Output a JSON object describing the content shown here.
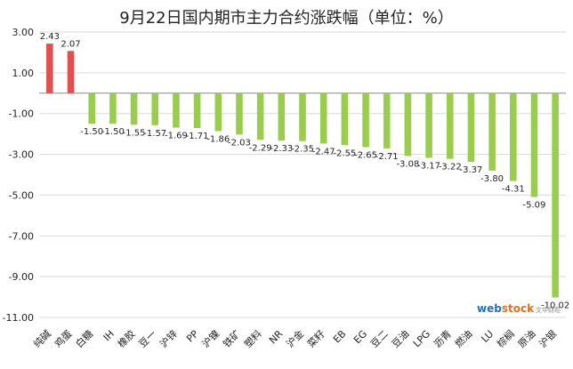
{
  "chart_data": {
    "type": "bar",
    "title": "9月22日国内期市主力合约涨跌幅（单位：%）",
    "xlabel": "",
    "ylabel": "",
    "ylim": [
      -11,
      3
    ],
    "yticks": [
      3.0,
      1.0,
      -1.0,
      -3.0,
      -5.0,
      -7.0,
      -9.0,
      -11.0
    ],
    "ytick_labels": [
      "3.00",
      "1.00",
      "-1.00",
      "-3.00",
      "-5.00",
      "-7.00",
      "-9.00",
      "-11.00"
    ],
    "grid": true,
    "legend": "none",
    "categories": [
      "纯碱",
      "鸡蛋",
      "白糖",
      "IH",
      "橡胶",
      "豆一",
      "沪锌",
      "PP",
      "沪镍",
      "铁矿",
      "塑料",
      "NR",
      "沪金",
      "菜籽",
      "EB",
      "EG",
      "豆二",
      "豆油",
      "LPG",
      "沥青",
      "燃油",
      "LU",
      "棕榈",
      "原油",
      "沪银"
    ],
    "values": [
      2.43,
      2.07,
      -1.5,
      -1.5,
      -1.55,
      -1.57,
      -1.69,
      -1.71,
      -1.86,
      -2.03,
      -2.29,
      -2.33,
      -2.35,
      -2.47,
      -2.55,
      -2.65,
      -2.71,
      -3.08,
      -3.17,
      -3.22,
      -3.37,
      -3.8,
      -4.31,
      -5.09,
      -10.02
    ],
    "value_labels": [
      "2.43",
      "2.07",
      "-1.50",
      "-1.50",
      "-1.55",
      "-1.57",
      "-1.69",
      "-1.71",
      "-1.86",
      "-2.03",
      "-2.29",
      "-2.33",
      "-2.35",
      "-2.47",
      "-2.55",
      "-2.65",
      "-2.71",
      "-3.08",
      "-3.17",
      "-3.22",
      "-3.37",
      "-3.80",
      "-4.31",
      "-5.09",
      "-10.02"
    ],
    "colors": {
      "positive": "#e05050",
      "negative": "#9acd4e",
      "grid": "#d9d9d9",
      "axis": "#888888"
    }
  },
  "watermark": {
    "brand_main": "web",
    "brand_accent": "stock",
    "brand_sub": "文华财经"
  }
}
